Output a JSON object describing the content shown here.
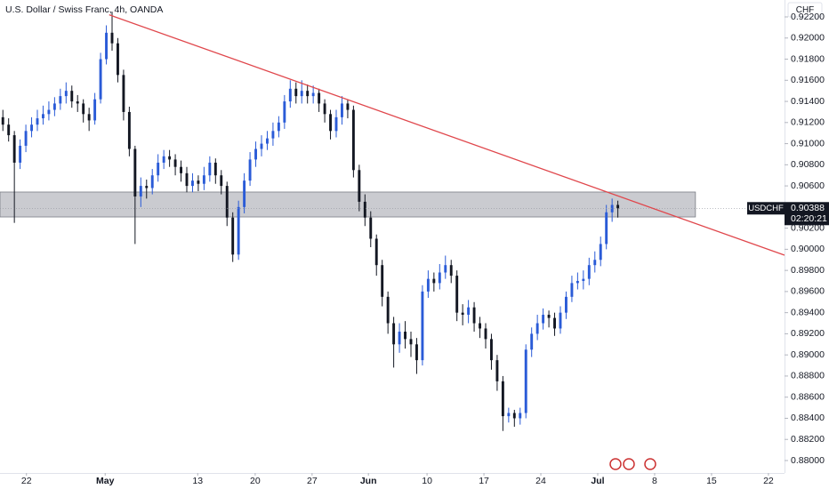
{
  "chart_data": {
    "type": "candlestick",
    "title": "U.S. Dollar / Swiss Franc, 4h, OANDA",
    "currency": "CHF",
    "countdown": "02:20:21",
    "grid": false,
    "xlim": [
      -0.5,
      136
    ],
    "xticks": [
      {
        "value": 4.1,
        "label": "22"
      },
      {
        "value": 17.8,
        "label": "May"
      },
      {
        "value": 33.9,
        "label": "13"
      },
      {
        "value": 43.9,
        "label": "20"
      },
      {
        "value": 53.8,
        "label": "27"
      },
      {
        "value": 63.6,
        "label": "Jun"
      },
      {
        "value": 73.8,
        "label": "10"
      },
      {
        "value": 83.7,
        "label": "17"
      },
      {
        "value": 93.6,
        "label": "24"
      },
      {
        "value": 103.5,
        "label": "Jul"
      },
      {
        "value": 113.4,
        "label": "8"
      },
      {
        "value": 123.3,
        "label": "15"
      },
      {
        "value": 133.2,
        "label": "22"
      }
    ],
    "ylim": [
      0.87882,
      0.9236
    ],
    "yticks": [
      {
        "value": 0.88,
        "label": "0.88000"
      },
      {
        "value": 0.882,
        "label": "0.88200"
      },
      {
        "value": 0.884,
        "label": "0.88400"
      },
      {
        "value": 0.886,
        "label": "0.88600"
      },
      {
        "value": 0.888,
        "label": "0.88800"
      },
      {
        "value": 0.89,
        "label": "0.89000"
      },
      {
        "value": 0.892,
        "label": "0.89200"
      },
      {
        "value": 0.894,
        "label": "0.89400"
      },
      {
        "value": 0.896,
        "label": "0.89600"
      },
      {
        "value": 0.898,
        "label": "0.89800"
      },
      {
        "value": 0.9,
        "label": "0.90000"
      },
      {
        "value": 0.902,
        "label": "0.90200"
      },
      {
        "value": 0.906,
        "label": "0.90600"
      },
      {
        "value": 0.908,
        "label": "0.90800"
      },
      {
        "value": 0.91,
        "label": "0.91000"
      },
      {
        "value": 0.912,
        "label": "0.91200"
      },
      {
        "value": 0.914,
        "label": "0.91400"
      },
      {
        "value": 0.916,
        "label": "0.91600"
      },
      {
        "value": 0.918,
        "label": "0.91800"
      },
      {
        "value": 0.92,
        "label": "0.92000"
      },
      {
        "value": 0.922,
        "label": "0.92200"
      }
    ],
    "zone": {
      "from": 0.90306,
      "to": 0.90542,
      "x_end": 120.5,
      "color": "#9598a1"
    },
    "trendline": {
      "x": [
        18.5,
        136
      ],
      "y": [
        0.9222,
        0.89944
      ],
      "color": "#e0474c"
    },
    "series": [
      {
        "name": "USDCHF",
        "up_color": "#2a5bd7",
        "down_color": "#131722",
        "open": [
          0.9125,
          0.9118,
          0.9108,
          0.9082,
          0.9098,
          0.9112,
          0.9118,
          0.9124,
          0.9128,
          0.9132,
          0.9138,
          0.9145,
          0.915,
          0.914,
          0.9138,
          0.9128,
          0.9122,
          0.9142,
          0.918,
          0.9205,
          0.9195,
          0.9165,
          0.913,
          0.9095,
          0.905,
          0.906,
          0.9058,
          0.907,
          0.9082,
          0.9088,
          0.9085,
          0.9078,
          0.9072,
          0.906,
          0.9065,
          0.9062,
          0.907,
          0.9082,
          0.907,
          0.906,
          0.903,
          0.8995,
          0.904,
          0.9065,
          0.9085,
          0.9095,
          0.91,
          0.9105,
          0.9112,
          0.912,
          0.914,
          0.9152,
          0.9145,
          0.915,
          0.9145,
          0.9148,
          0.9138,
          0.9128,
          0.9112,
          0.9125,
          0.9138,
          0.9132,
          0.9075,
          0.9045,
          0.903,
          0.901,
          0.8985,
          0.8955,
          0.893,
          0.891,
          0.8922,
          0.8915,
          0.891,
          0.8895,
          0.896,
          0.8972,
          0.8968,
          0.8978,
          0.8985,
          0.8975,
          0.894,
          0.8938,
          0.8945,
          0.893,
          0.8925,
          0.8915,
          0.8895,
          0.8875,
          0.8842,
          0.8845,
          0.884,
          0.8845,
          0.8905,
          0.892,
          0.893,
          0.8938,
          0.8935,
          0.8925,
          0.894,
          0.8955,
          0.8968,
          0.897,
          0.8972,
          0.8985,
          0.899,
          0.9005,
          0.9035,
          0.9042
        ],
        "high": [
          0.9132,
          0.9124,
          0.9112,
          0.9104,
          0.9118,
          0.9125,
          0.9132,
          0.9136,
          0.914,
          0.9144,
          0.9152,
          0.9158,
          0.9155,
          0.9146,
          0.9142,
          0.9134,
          0.9148,
          0.9186,
          0.9212,
          0.9225,
          0.92,
          0.917,
          0.9135,
          0.9098,
          0.9068,
          0.9066,
          0.9076,
          0.909,
          0.9094,
          0.9094,
          0.909,
          0.9084,
          0.9078,
          0.9072,
          0.907,
          0.9078,
          0.9088,
          0.9086,
          0.9075,
          0.9064,
          0.9035,
          0.9046,
          0.9072,
          0.9092,
          0.9102,
          0.9108,
          0.9112,
          0.912,
          0.9126,
          0.9146,
          0.916,
          0.9158,
          0.916,
          0.9156,
          0.9155,
          0.9152,
          0.9142,
          0.9132,
          0.9132,
          0.9145,
          0.9142,
          0.9136,
          0.908,
          0.9052,
          0.9036,
          0.9014,
          0.899,
          0.896,
          0.8936,
          0.893,
          0.8932,
          0.8922,
          0.8916,
          0.8966,
          0.898,
          0.8978,
          0.8986,
          0.8994,
          0.899,
          0.898,
          0.8948,
          0.8952,
          0.895,
          0.8936,
          0.893,
          0.892,
          0.89,
          0.888,
          0.885,
          0.8848,
          0.885,
          0.891,
          0.8926,
          0.8938,
          0.8944,
          0.8942,
          0.894,
          0.8946,
          0.896,
          0.8975,
          0.8978,
          0.898,
          0.8992,
          0.8998,
          0.9012,
          0.9042,
          0.9048,
          0.9046
        ],
        "low": [
          0.9112,
          0.9102,
          0.9025,
          0.9076,
          0.9092,
          0.9106,
          0.9112,
          0.9118,
          0.9122,
          0.9126,
          0.9132,
          0.9138,
          0.9134,
          0.913,
          0.912,
          0.9112,
          0.9118,
          0.9138,
          0.9175,
          0.9188,
          0.9158,
          0.9122,
          0.9088,
          0.9005,
          0.904,
          0.9048,
          0.9052,
          0.9064,
          0.9076,
          0.9078,
          0.907,
          0.9064,
          0.9054,
          0.9054,
          0.9055,
          0.9056,
          0.9064,
          0.9062,
          0.9052,
          0.9022,
          0.8988,
          0.899,
          0.9034,
          0.906,
          0.9078,
          0.9088,
          0.9094,
          0.9098,
          0.9106,
          0.9114,
          0.9134,
          0.9138,
          0.9138,
          0.9138,
          0.9138,
          0.913,
          0.912,
          0.9104,
          0.9106,
          0.9118,
          0.9124,
          0.9068,
          0.9036,
          0.9022,
          0.9002,
          0.8975,
          0.8946,
          0.892,
          0.8888,
          0.8902,
          0.8906,
          0.8898,
          0.8882,
          0.889,
          0.8954,
          0.896,
          0.8962,
          0.8972,
          0.8968,
          0.8932,
          0.8928,
          0.893,
          0.8922,
          0.8916,
          0.8906,
          0.8886,
          0.8866,
          0.8828,
          0.8836,
          0.8832,
          0.8834,
          0.884,
          0.8898,
          0.8914,
          0.8924,
          0.8926,
          0.8918,
          0.892,
          0.8934,
          0.895,
          0.8962,
          0.8962,
          0.8966,
          0.8978,
          0.8984,
          0.9,
          0.9026,
          0.903
        ],
        "close": [
          0.9118,
          0.9108,
          0.9082,
          0.9098,
          0.9112,
          0.9118,
          0.9124,
          0.9128,
          0.9132,
          0.9138,
          0.9145,
          0.915,
          0.914,
          0.9138,
          0.9128,
          0.9122,
          0.9142,
          0.918,
          0.9205,
          0.9195,
          0.9165,
          0.913,
          0.9095,
          0.905,
          0.906,
          0.9058,
          0.907,
          0.9082,
          0.9088,
          0.9085,
          0.9078,
          0.9072,
          0.906,
          0.9065,
          0.9062,
          0.907,
          0.9082,
          0.907,
          0.906,
          0.903,
          0.8995,
          0.904,
          0.9065,
          0.9085,
          0.9095,
          0.91,
          0.9105,
          0.9112,
          0.912,
          0.914,
          0.9152,
          0.9145,
          0.915,
          0.9145,
          0.9148,
          0.9138,
          0.9128,
          0.9112,
          0.9125,
          0.9138,
          0.9132,
          0.9075,
          0.9045,
          0.903,
          0.901,
          0.8985,
          0.8955,
          0.893,
          0.891,
          0.8922,
          0.8915,
          0.891,
          0.8895,
          0.896,
          0.8972,
          0.8968,
          0.8978,
          0.8985,
          0.8975,
          0.894,
          0.8938,
          0.8945,
          0.893,
          0.8925,
          0.8915,
          0.8895,
          0.8875,
          0.8842,
          0.8845,
          0.884,
          0.8845,
          0.8905,
          0.892,
          0.893,
          0.8938,
          0.8935,
          0.8925,
          0.894,
          0.8955,
          0.8968,
          0.897,
          0.8972,
          0.8985,
          0.899,
          0.9005,
          0.9035,
          0.9042,
          0.90388
        ]
      }
    ]
  }
}
